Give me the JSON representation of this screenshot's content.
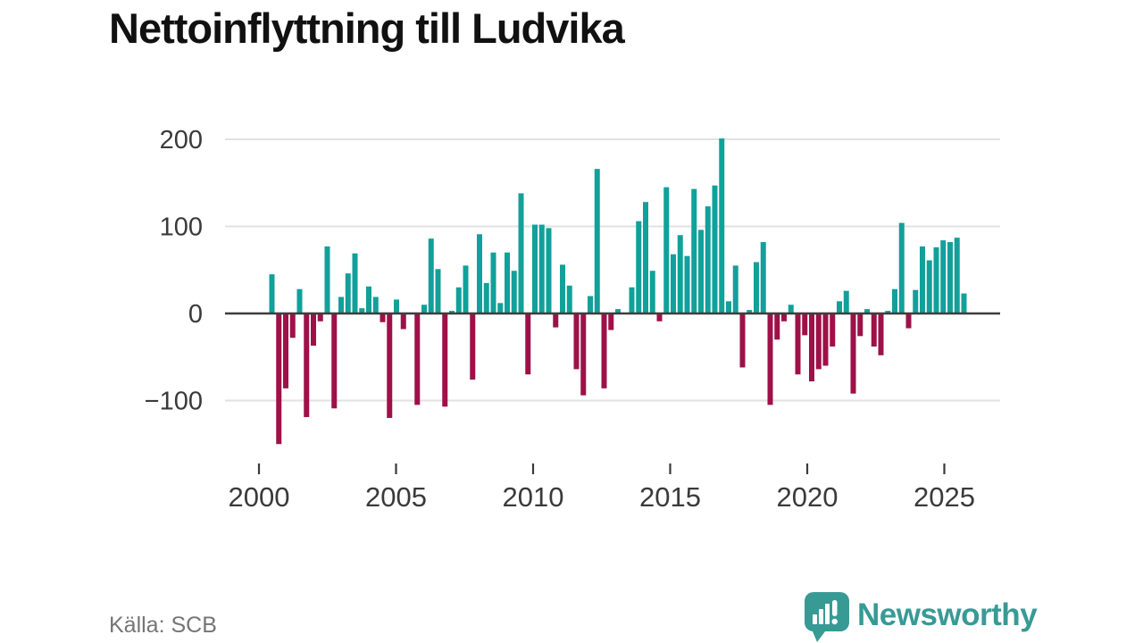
{
  "header": {
    "title": "Nettoinflyttning till Ludvika"
  },
  "footer": {
    "source": "Källa: SCB",
    "brand": "Newsworthy"
  },
  "icons": {
    "brand_icon": "newsworthy-speech-bubble-bar-chart"
  },
  "colors": {
    "positive_bar": "#12a09a",
    "negative_bar": "#9e1148",
    "zero_axis": "#3d3d3d",
    "gridline": "#e2e2e2",
    "tick_label": "#3a3a3a",
    "brand_teal": "#389a95",
    "source_gray": "#757575"
  },
  "chart_data": {
    "type": "bar",
    "title": "Nettoinflyttning till Ludvika",
    "xlabel": "",
    "ylabel": "",
    "x_period": "quarter",
    "x_start": "2000-Q3",
    "x_end": "2025-Q3",
    "values": [
      45,
      -150,
      -86,
      -28,
      28,
      -119,
      -37,
      -9,
      77,
      -109,
      19,
      46,
      69,
      6,
      31,
      19,
      -10,
      -120,
      16,
      -18,
      0,
      -105,
      10,
      86,
      51,
      -107,
      3,
      30,
      55,
      -76,
      91,
      35,
      70,
      12,
      70,
      49,
      138,
      -70,
      102,
      102,
      98,
      -16,
      56,
      32,
      -64,
      -94,
      20,
      166,
      -86,
      -19,
      5,
      0,
      30,
      106,
      128,
      49,
      -9,
      145,
      68,
      90,
      66,
      143,
      96,
      123,
      147,
      201,
      14,
      55,
      -62,
      4,
      59,
      82,
      -105,
      -30,
      -9,
      10,
      -70,
      -25,
      -78,
      -64,
      -60,
      -38,
      14,
      26,
      -92,
      -26,
      5,
      -38,
      -48,
      3,
      28,
      104,
      -17,
      27,
      77,
      61,
      76,
      84,
      82,
      87,
      23
    ],
    "yticks": [
      {
        "value": 200,
        "label": "200"
      },
      {
        "value": 100,
        "label": "100"
      },
      {
        "value": 0,
        "label": "0"
      },
      {
        "value": -100,
        "label": "−100"
      }
    ],
    "xticks": [
      {
        "year": 2000,
        "label": "2000"
      },
      {
        "year": 2005,
        "label": "2005"
      },
      {
        "year": 2010,
        "label": "2010"
      },
      {
        "year": 2015,
        "label": "2015"
      },
      {
        "year": 2020,
        "label": "2020"
      },
      {
        "year": 2025,
        "label": "2025"
      }
    ],
    "ylim": [
      -160,
      215
    ],
    "grid": true,
    "legend": "none",
    "source": "Källa: SCB"
  }
}
